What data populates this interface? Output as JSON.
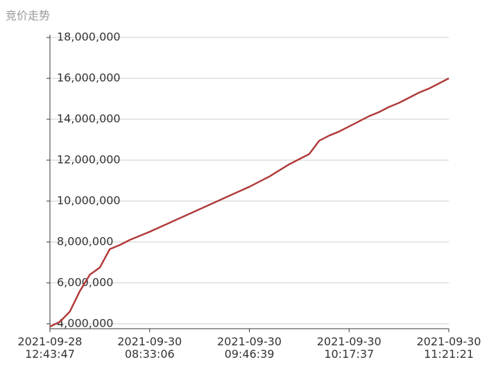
{
  "chart_data": {
    "type": "line",
    "title": "竞价走势",
    "categories": [
      "2021-09-28\n12:43:47",
      null,
      null,
      null,
      null,
      null,
      null,
      null,
      null,
      null,
      "2021-09-30\n08:33:06",
      null,
      null,
      null,
      null,
      null,
      null,
      null,
      null,
      null,
      "2021-09-30\n09:46:39",
      null,
      null,
      null,
      null,
      null,
      null,
      null,
      null,
      null,
      "2021-09-30\n10:17:37",
      null,
      null,
      null,
      null,
      null,
      null,
      null,
      null,
      null,
      "2021-09-30\n11:21:21"
    ],
    "series": [
      {
        "color": "#b03a3a",
        "values": [
          3860000,
          4100000,
          4600000,
          5600000,
          6400000,
          6750000,
          7650000,
          7850000,
          8100000,
          8300000,
          8500000,
          8720000,
          8940000,
          9160000,
          9380000,
          9600000,
          9820000,
          10040000,
          10260000,
          10480000,
          10700000,
          10950000,
          11200000,
          11500000,
          11800000,
          12050000,
          12300000,
          12950000,
          13200000,
          13400000,
          13650000,
          13900000,
          14150000,
          14350000,
          14600000,
          14800000,
          15050000,
          15300000,
          15500000,
          15750000,
          16000000
        ]
      }
    ],
    "ylim": [
      3760000,
      18000000
    ],
    "yticks": [
      {
        "value": 4000000,
        "label": "4,000,000"
      },
      {
        "value": 6000000,
        "label": "6,000,000"
      },
      {
        "value": 8000000,
        "label": "8,000,000"
      },
      {
        "value": 10000000,
        "label": "10,000,000"
      },
      {
        "value": 12000000,
        "label": "12,000,000"
      },
      {
        "value": 14000000,
        "label": "14,000,000"
      },
      {
        "value": 16000000,
        "label": "16,000,000"
      },
      {
        "value": 18000000,
        "label": "18,000,000"
      }
    ],
    "grid": true
  }
}
